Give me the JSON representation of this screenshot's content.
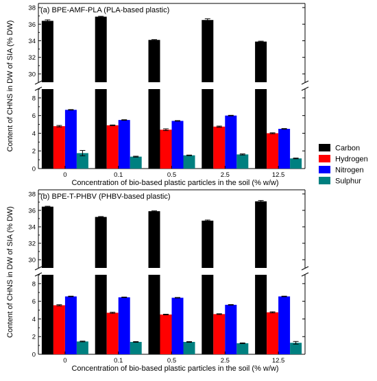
{
  "chart_data": {
    "type": "bar",
    "ylabel": "Content of CHNS in DW of SIA (% DW)",
    "xlabel": "Concentration of bio-based plastic particles in the soil (% w/w)",
    "categories": [
      "0",
      "0.1",
      "0.5",
      "2.5",
      "12.5"
    ],
    "legend": {
      "placement": "right",
      "entries": [
        {
          "name": "Carbon",
          "color": "#000000"
        },
        {
          "name": "Hydrogen",
          "color": "#ff0000"
        },
        {
          "name": "Nitrogen",
          "color": "#0000ff"
        },
        {
          "name": "Sulphur",
          "color": "#008080"
        }
      ]
    },
    "axis_break": true,
    "upper_ylim": [
      29,
      38.5
    ],
    "upper_yticks": [
      "30",
      "32",
      "34",
      "36",
      "38"
    ],
    "lower_ylim": [
      0,
      9
    ],
    "lower_yticks": [
      "0",
      "2",
      "4",
      "6",
      "8"
    ],
    "panels": [
      {
        "title": "(a) BPE-AMF-PLA (PLA-based plastic)",
        "series": [
          {
            "name": "Carbon",
            "values": [
              36.4,
              36.9,
              34.1,
              36.5,
              33.9
            ],
            "errors": [
              0.12,
              0.05,
              0.04,
              0.15,
              0.05
            ]
          },
          {
            "name": "Hydrogen",
            "values": [
              4.8,
              4.9,
              4.4,
              4.75,
              4.0
            ],
            "errors": [
              0.08,
              0.04,
              0.1,
              0.06,
              0.05
            ]
          },
          {
            "name": "Nitrogen",
            "values": [
              6.65,
              5.5,
              5.4,
              6.0,
              4.5
            ],
            "errors": [
              0.03,
              0.03,
              0.03,
              0.03,
              0.03
            ]
          },
          {
            "name": "Sulphur",
            "values": [
              1.75,
              1.35,
              1.5,
              1.6,
              1.15
            ],
            "errors": [
              0.3,
              0.05,
              0.03,
              0.06,
              0.04
            ]
          }
        ]
      },
      {
        "title": "(b) BPE-T-PHBV (PHBV-based plastic)",
        "series": [
          {
            "name": "Carbon",
            "values": [
              36.45,
              35.2,
              35.9,
              34.75,
              37.1
            ],
            "errors": [
              0.05,
              0.05,
              0.04,
              0.08,
              0.1
            ]
          },
          {
            "name": "Hydrogen",
            "values": [
              5.55,
              4.7,
              4.5,
              4.55,
              4.75
            ],
            "errors": [
              0.06,
              0.06,
              0.04,
              0.04,
              0.06
            ]
          },
          {
            "name": "Nitrogen",
            "values": [
              6.55,
              6.45,
              6.4,
              5.6,
              6.55
            ],
            "errors": [
              0.03,
              0.03,
              0.03,
              0.03,
              0.03
            ]
          },
          {
            "name": "Sulphur",
            "values": [
              1.45,
              1.4,
              1.4,
              1.25,
              1.3
            ],
            "errors": [
              0.04,
              0.04,
              0.04,
              0.04,
              0.15
            ]
          }
        ]
      }
    ]
  }
}
